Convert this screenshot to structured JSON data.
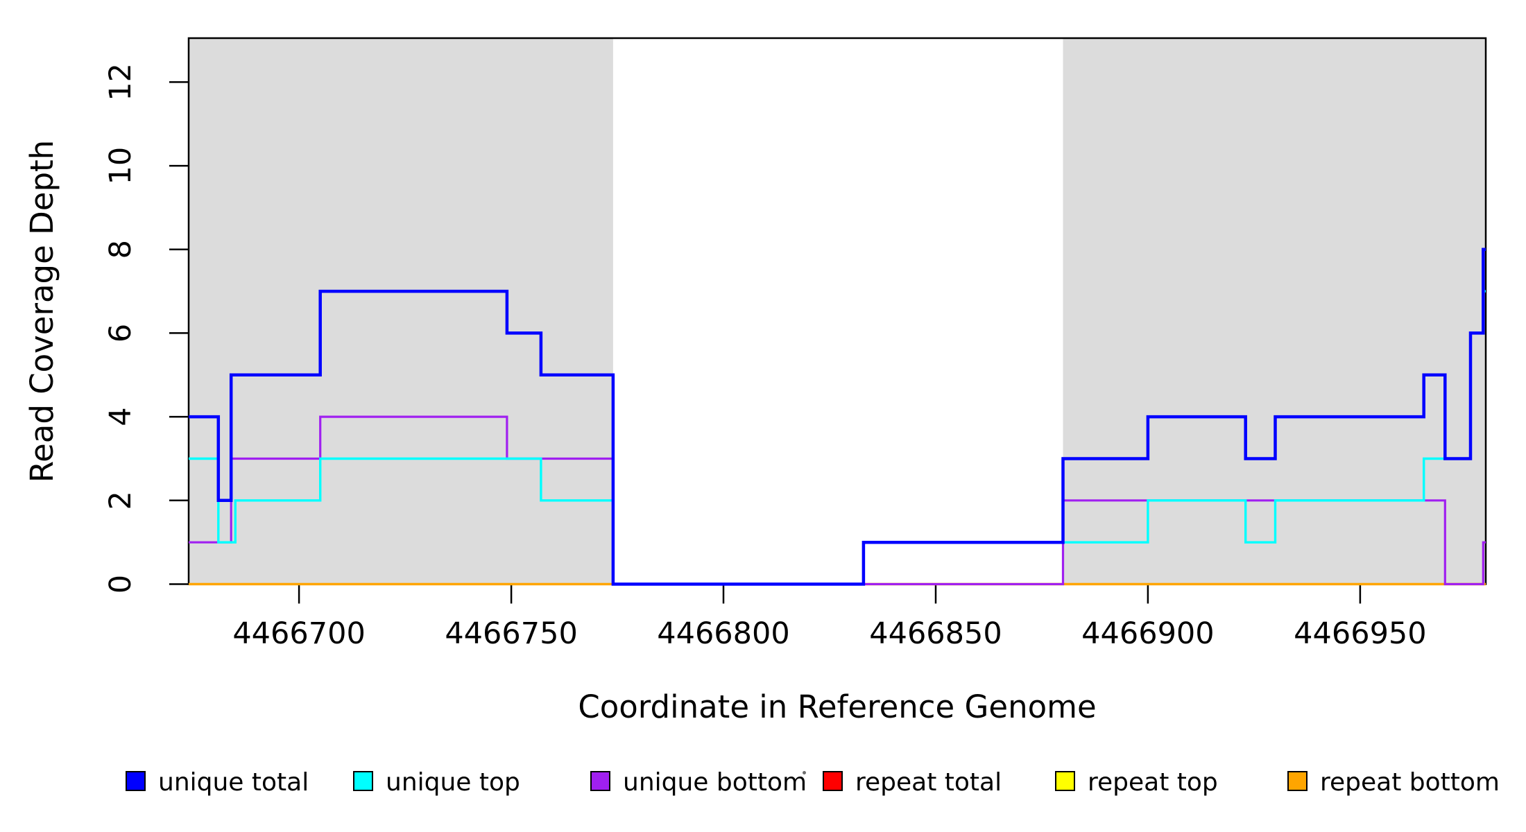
{
  "chart_data": {
    "type": "line",
    "subtype": "step-coverage",
    "title": "",
    "xlabel": "Coordinate in Reference Genome",
    "ylabel": "Read Coverage Depth",
    "xlim": [
      4466674,
      4466979.6
    ],
    "ylim": [
      0,
      13.05
    ],
    "grid": false,
    "x_ticks": [
      4466700,
      4466750,
      4466800,
      4466850,
      4466900,
      4466950
    ],
    "y_ticks": [
      0,
      2,
      4,
      6,
      8,
      10,
      12
    ],
    "shaded_regions": [
      {
        "x0": 4466674,
        "x1": 4466774,
        "color": "#DCDCDC"
      },
      {
        "x0": 4466880,
        "x1": 4466979.6,
        "color": "#DCDCDC"
      }
    ],
    "series": [
      {
        "name": "repeat total",
        "color": "#FF0000",
        "width": 3.0,
        "steps": [
          [
            4466674,
            0
          ]
        ]
      },
      {
        "name": "repeat top",
        "color": "#FFFF00",
        "width": 3.0,
        "steps": [
          [
            4466674,
            0
          ]
        ]
      },
      {
        "name": "repeat bottom",
        "color": "#FFA500",
        "width": 3.6,
        "steps": [
          [
            4466674,
            0
          ]
        ]
      },
      {
        "name": "unique bottom",
        "color": "#A020F0",
        "width": 3.2,
        "steps": [
          [
            4466674,
            1
          ],
          [
            4466684,
            3
          ],
          [
            4466705,
            4
          ],
          [
            4466749,
            3
          ],
          [
            4466774,
            0
          ],
          [
            4466880,
            2
          ],
          [
            4466970,
            0
          ],
          [
            4466979,
            1
          ]
        ]
      },
      {
        "name": "unique top",
        "color": "#00FFFF",
        "width": 3.4,
        "steps": [
          [
            4466674,
            3
          ],
          [
            4466681,
            1
          ],
          [
            4466685,
            2
          ],
          [
            4466705,
            3
          ],
          [
            4466757,
            2
          ],
          [
            4466774,
            0
          ],
          [
            4466833,
            1
          ],
          [
            4466900,
            2
          ],
          [
            4466923,
            1
          ],
          [
            4466930,
            2
          ],
          [
            4466965,
            3
          ],
          [
            4466976,
            6
          ],
          [
            4466979,
            7
          ]
        ]
      },
      {
        "name": "unique total",
        "color": "#0000FF",
        "width": 4.5,
        "steps": [
          [
            4466674,
            4
          ],
          [
            4466681,
            2
          ],
          [
            4466684,
            5
          ],
          [
            4466705,
            7
          ],
          [
            4466749,
            6
          ],
          [
            4466757,
            5
          ],
          [
            4466774,
            0
          ],
          [
            4466833,
            1
          ],
          [
            4466880,
            3
          ],
          [
            4466900,
            4
          ],
          [
            4466923,
            3
          ],
          [
            4466930,
            4
          ],
          [
            4466965,
            5
          ],
          [
            4466970,
            3
          ],
          [
            4466976,
            6
          ],
          [
            4466979,
            8
          ]
        ]
      }
    ],
    "legend": {
      "position": "bottom",
      "entries": [
        {
          "label": "unique total",
          "color": "#0000FF"
        },
        {
          "label": "unique top",
          "color": "#00FFFF"
        },
        {
          "label": "unique bottom",
          "color": "#A020F0"
        },
        {
          "label": "repeat total",
          "color": "#FF0000"
        },
        {
          "label": "repeat top",
          "color": "#FFFF00"
        },
        {
          "label": "repeat bottom",
          "color": "#FFA500"
        }
      ]
    },
    "axis_color": "#000000",
    "plot_background": "#FFFFFF"
  }
}
